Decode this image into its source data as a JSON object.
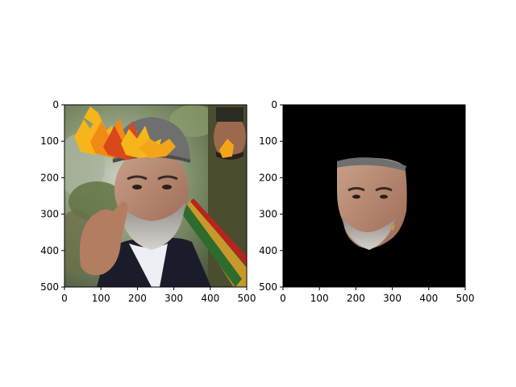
{
  "figure": {
    "panels": [
      {
        "name": "left-panel",
        "content": "photo of a man with grey hat overlaid with autumn leaves",
        "x_ticks": [
          "0",
          "100",
          "200",
          "300",
          "400",
          "500"
        ],
        "y_ticks": [
          "0",
          "100",
          "200",
          "300",
          "400",
          "500"
        ]
      },
      {
        "name": "right-panel",
        "content": "segmented face on black background",
        "x_ticks": [
          "0",
          "100",
          "200",
          "300",
          "400",
          "500"
        ],
        "y_ticks": [
          "0",
          "100",
          "200",
          "300",
          "400",
          "500"
        ]
      }
    ],
    "colors": {
      "background": "#ffffff",
      "mask_background": "#000000",
      "skin": "#b9866b",
      "beard": "#b7b3ad",
      "hat": "#6f6f6f",
      "suit": "#1b1c2b",
      "uniform": "#3c4125",
      "leaf_orange": "#f08a14",
      "leaf_yellow": "#f6b51b",
      "leaf_red": "#d9471a"
    }
  }
}
